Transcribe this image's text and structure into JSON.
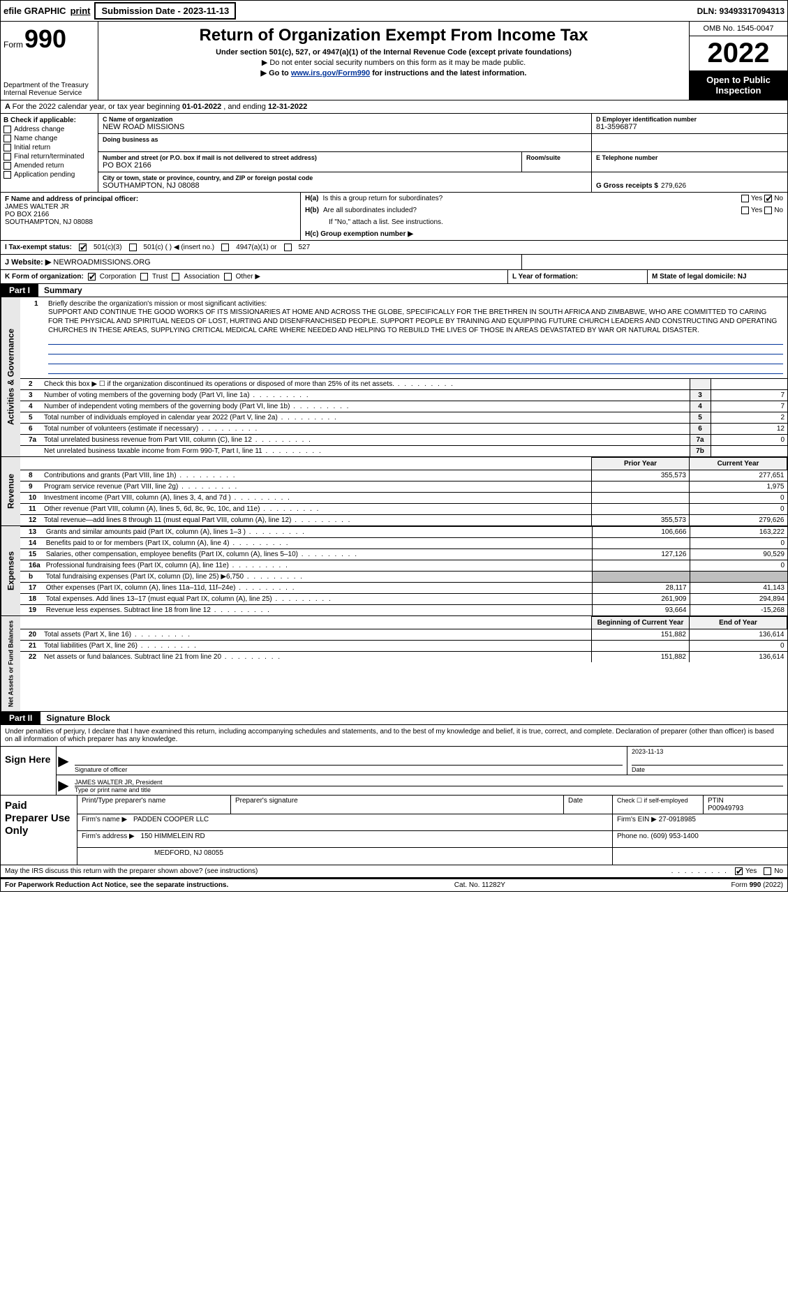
{
  "top": {
    "efile": "efile GRAPHIC",
    "print": "print",
    "submission": "Submission Date - 2023-11-13",
    "dln": "DLN: 93493317094313"
  },
  "header": {
    "form_word": "Form",
    "form_num": "990",
    "dept": "Department of the Treasury Internal Revenue Service",
    "title": "Return of Organization Exempt From Income Tax",
    "sub1": "Under section 501(c), 527, or 4947(a)(1) of the Internal Revenue Code (except private foundations)",
    "sub2": "▶ Do not enter social security numbers on this form as it may be made public.",
    "sub3_pre": "▶ Go to ",
    "sub3_link": "www.irs.gov/Form990",
    "sub3_post": " for instructions and the latest information.",
    "omb": "OMB No. 1545-0047",
    "year": "2022",
    "open": "Open to Public Inspection"
  },
  "rowA": "A For the 2022 calendar year, or tax year beginning 01-01-2022    , and ending 12-31-2022",
  "colB": {
    "label": "B Check if applicable:",
    "items": [
      "Address change",
      "Name change",
      "Initial return",
      "Final return/terminated",
      "Amended return",
      "Application pending"
    ]
  },
  "colC": {
    "name_label": "C Name of organization",
    "name": "NEW ROAD MISSIONS",
    "dba_label": "Doing business as",
    "addr_label": "Number and street (or P.O. box if mail is not delivered to street address)",
    "room_label": "Room/suite",
    "addr": "PO BOX 2166",
    "city_label": "City or town, state or province, country, and ZIP or foreign postal code",
    "city": "SOUTHAMPTON, NJ  08088"
  },
  "colD": {
    "label": "D Employer identification number",
    "ein": "81-3596877",
    "tel_label": "E Telephone number",
    "g_label": "G Gross receipts $",
    "g_val": "279,626"
  },
  "colF": {
    "label": "F  Name and address of principal officer:",
    "name": "JAMES WALTER JR",
    "addr1": "PO BOX 2166",
    "addr2": "SOUTHAMPTON, NJ  08088"
  },
  "colH": {
    "ha": "H(a)  Is this a group return for subordinates?",
    "hb": "H(b)  Are all subordinates included?",
    "hb2": "If \"No,\" attach a list. See instructions.",
    "hc": "H(c)  Group exemption number ▶",
    "yes": "Yes",
    "no": "No"
  },
  "rowI": {
    "label": "I   Tax-exempt status:",
    "c3": "501(c)(3)",
    "c": "501(c) (   ) ◀ (insert no.)",
    "a1": "4947(a)(1) or",
    "s527": "527"
  },
  "rowJ": {
    "label": "J   Website: ▶",
    "val": "NEWROADMISSIONS.ORG"
  },
  "rowK": {
    "label": "K Form of organization:",
    "corp": "Corporation",
    "trust": "Trust",
    "assoc": "Association",
    "other": "Other ▶"
  },
  "rowL": "L Year of formation:",
  "rowM": "M State of legal domicile: NJ",
  "part1": {
    "label": "Part I",
    "title": "Summary"
  },
  "vert": {
    "gov": "Activities & Governance",
    "rev": "Revenue",
    "exp": "Expenses",
    "net": "Net Assets or Fund Balances"
  },
  "mission": {
    "intro": "Briefly describe the organization's mission or most significant activities:",
    "text": "SUPPORT AND CONTINUE THE GOOD WORKS OF ITS MISSIONARIES AT HOME AND ACROSS THE GLOBE, SPECIFICALLY FOR THE BRETHREN IN SOUTH AFRICA AND ZIMBABWE, WHO ARE COMMITTED TO CARING FOR THE PHYSICAL AND SPIRITUAL NEEDS OF LOST, HURTING AND DISENFRANCHISED PEOPLE. SUPPORT PEOPLE BY TRAINING AND EQUIPPING FUTURE CHURCH LEADERS AND CONSTRUCTING AND OPERATING CHURCHES IN THESE AREAS, SUPPLYING CRITICAL MEDICAL CARE WHERE NEEDED AND HELPING TO REBUILD THE LIVES OF THOSE IN AREAS DEVASTATED BY WAR OR NATURAL DISASTER."
  },
  "gov_lines": [
    {
      "n": "2",
      "desc": "Check this box ▶ ☐ if the organization discontinued its operations or disposed of more than 25% of its net assets.",
      "box": "",
      "val": ""
    },
    {
      "n": "3",
      "desc": "Number of voting members of the governing body (Part VI, line 1a)",
      "box": "3",
      "val": "7"
    },
    {
      "n": "4",
      "desc": "Number of independent voting members of the governing body (Part VI, line 1b)",
      "box": "4",
      "val": "7"
    },
    {
      "n": "5",
      "desc": "Total number of individuals employed in calendar year 2022 (Part V, line 2a)",
      "box": "5",
      "val": "2"
    },
    {
      "n": "6",
      "desc": "Total number of volunteers (estimate if necessary)",
      "box": "6",
      "val": "12"
    },
    {
      "n": "7a",
      "desc": "Total unrelated business revenue from Part VIII, column (C), line 12",
      "box": "7a",
      "val": "0"
    },
    {
      "n": "",
      "desc": "Net unrelated business taxable income from Form 990-T, Part I, line 11",
      "box": "7b",
      "val": ""
    }
  ],
  "fin_head": {
    "py": "Prior Year",
    "cy": "Current Year"
  },
  "rev_lines": [
    {
      "n": "8",
      "desc": "Contributions and grants (Part VIII, line 1h)",
      "py": "355,573",
      "cy": "277,651"
    },
    {
      "n": "9",
      "desc": "Program service revenue (Part VIII, line 2g)",
      "py": "",
      "cy": "1,975"
    },
    {
      "n": "10",
      "desc": "Investment income (Part VIII, column (A), lines 3, 4, and 7d )",
      "py": "",
      "cy": "0"
    },
    {
      "n": "11",
      "desc": "Other revenue (Part VIII, column (A), lines 5, 6d, 8c, 9c, 10c, and 11e)",
      "py": "",
      "cy": "0"
    },
    {
      "n": "12",
      "desc": "Total revenue—add lines 8 through 11 (must equal Part VIII, column (A), line 12)",
      "py": "355,573",
      "cy": "279,626"
    }
  ],
  "exp_lines": [
    {
      "n": "13",
      "desc": "Grants and similar amounts paid (Part IX, column (A), lines 1–3 )",
      "py": "106,666",
      "cy": "163,222"
    },
    {
      "n": "14",
      "desc": "Benefits paid to or for members (Part IX, column (A), line 4)",
      "py": "",
      "cy": "0"
    },
    {
      "n": "15",
      "desc": "Salaries, other compensation, employee benefits (Part IX, column (A), lines 5–10)",
      "py": "127,126",
      "cy": "90,529"
    },
    {
      "n": "16a",
      "desc": "Professional fundraising fees (Part IX, column (A), line 11e)",
      "py": "",
      "cy": "0"
    },
    {
      "n": "b",
      "desc": "Total fundraising expenses (Part IX, column (D), line 25) ▶6,750",
      "py": "shaded",
      "cy": "shaded"
    },
    {
      "n": "17",
      "desc": "Other expenses (Part IX, column (A), lines 11a–11d, 11f–24e)",
      "py": "28,117",
      "cy": "41,143"
    },
    {
      "n": "18",
      "desc": "Total expenses. Add lines 13–17 (must equal Part IX, column (A), line 25)",
      "py": "261,909",
      "cy": "294,894"
    },
    {
      "n": "19",
      "desc": "Revenue less expenses. Subtract line 18 from line 12",
      "py": "93,664",
      "cy": "-15,268"
    }
  ],
  "net_head": {
    "py": "Beginning of Current Year",
    "cy": "End of Year"
  },
  "net_lines": [
    {
      "n": "20",
      "desc": "Total assets (Part X, line 16)",
      "py": "151,882",
      "cy": "136,614"
    },
    {
      "n": "21",
      "desc": "Total liabilities (Part X, line 26)",
      "py": "",
      "cy": "0"
    },
    {
      "n": "22",
      "desc": "Net assets or fund balances. Subtract line 21 from line 20",
      "py": "151,882",
      "cy": "136,614"
    }
  ],
  "part2": {
    "label": "Part II",
    "title": "Signature Block"
  },
  "sig_intro": "Under penalties of perjury, I declare that I have examined this return, including accompanying schedules and statements, and to the best of my knowledge and belief, it is true, correct, and complete. Declaration of preparer (other than officer) is based on all information of which preparer has any knowledge.",
  "sign": {
    "here": "Sign Here",
    "sig_label": "Signature of officer",
    "date": "2023-11-13",
    "date_label": "Date",
    "name": "JAMES WALTER JR, President",
    "name_label": "Type or print name and title"
  },
  "paid": {
    "label": "Paid Preparer Use Only",
    "h1": "Print/Type preparer's name",
    "h2": "Preparer's signature",
    "h3": "Date",
    "h4a": "Check ☐ if self-employed",
    "h4b": "PTIN",
    "ptin": "P00949793",
    "firm_label": "Firm's name     ▶",
    "firm": "PADDEN COOPER LLC",
    "ein_label": "Firm's EIN ▶",
    "ein": "27-0918985",
    "addr_label": "Firm's address ▶",
    "addr1": "150 HIMMELEIN RD",
    "addr2": "MEDFORD, NJ  08055",
    "phone_label": "Phone no.",
    "phone": "(609) 953-1400"
  },
  "bottom": {
    "q": "May the IRS discuss this return with the preparer shown above? (see instructions)",
    "yes": "Yes",
    "no": "No"
  },
  "footer": {
    "l": "For Paperwork Reduction Act Notice, see the separate instructions.",
    "m": "Cat. No. 11282Y",
    "r": "Form 990 (2022)"
  }
}
